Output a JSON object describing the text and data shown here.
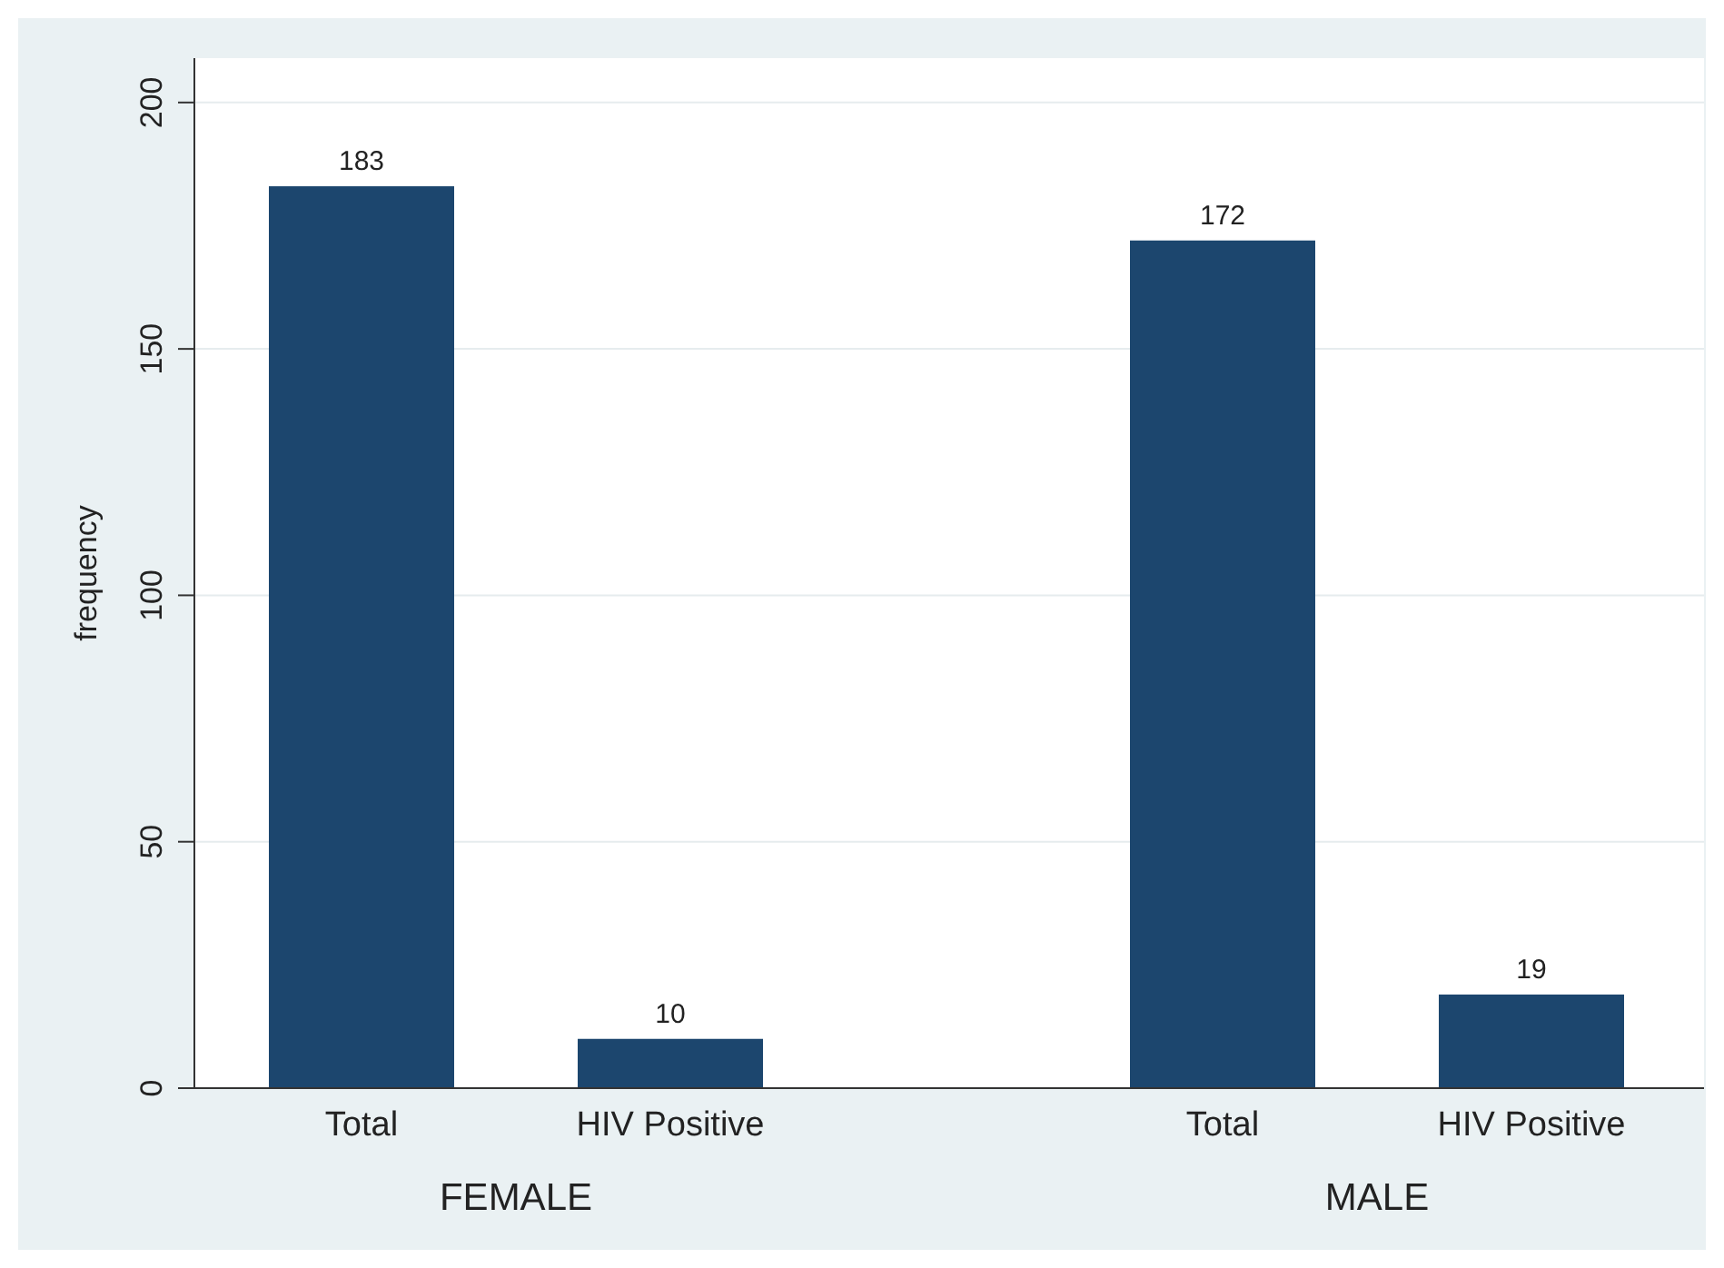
{
  "chart_data": {
    "type": "bar",
    "ylabel": "frequency",
    "categories": [
      "Total",
      "HIV Positive",
      "Total",
      "HIV Positive"
    ],
    "values": [
      183,
      10,
      172,
      19
    ],
    "color": "#1c466e",
    "ylim": [
      0,
      209
    ],
    "yticks": [
      0,
      50,
      100,
      150,
      200
    ],
    "grid": "y",
    "data_labels": true,
    "annotations": [
      "FEMALE",
      "MALE"
    ]
  }
}
